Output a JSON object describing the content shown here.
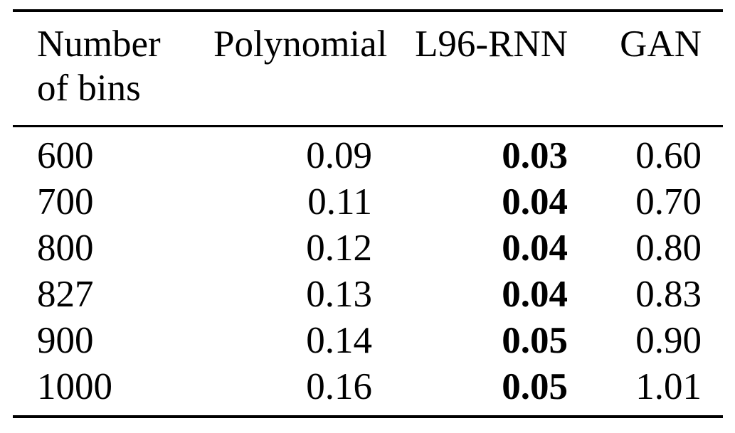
{
  "colors": {
    "background": "#ffffff",
    "text": "#000000",
    "rule": "#000000"
  },
  "table": {
    "headers": {
      "col1": "Number of bins",
      "col2": "Polynomial",
      "col3": "L96-RNN",
      "col4": "GAN"
    },
    "bold_column_label": "L96-RNN",
    "rows": [
      [
        "600",
        "0.09",
        "0.03",
        "0.60"
      ],
      [
        "700",
        "0.11",
        "0.04",
        "0.70"
      ],
      [
        "800",
        "0.12",
        "0.04",
        "0.80"
      ],
      [
        "827",
        "0.13",
        "0.04",
        "0.83"
      ],
      [
        "900",
        "0.14",
        "0.05",
        "0.90"
      ],
      [
        "1000",
        "0.16",
        "0.05",
        "1.01"
      ]
    ]
  },
  "chart_data": {
    "type": "table",
    "columns": [
      "Number of bins",
      "Polynomial",
      "L96-RNN",
      "GAN"
    ],
    "rows": [
      {
        "bins": 600,
        "polynomial": 0.09,
        "l96_rnn": 0.03,
        "gan": 0.6
      },
      {
        "bins": 700,
        "polynomial": 0.11,
        "l96_rnn": 0.04,
        "gan": 0.7
      },
      {
        "bins": 800,
        "polynomial": 0.12,
        "l96_rnn": 0.04,
        "gan": 0.8
      },
      {
        "bins": 827,
        "polynomial": 0.13,
        "l96_rnn": 0.04,
        "gan": 0.83
      },
      {
        "bins": 900,
        "polynomial": 0.14,
        "l96_rnn": 0.05,
        "gan": 0.9
      },
      {
        "bins": 1000,
        "polynomial": 0.16,
        "l96_rnn": 0.05,
        "gan": 1.01
      }
    ],
    "emphasis": "L96-RNN values are bold (best scores)"
  }
}
